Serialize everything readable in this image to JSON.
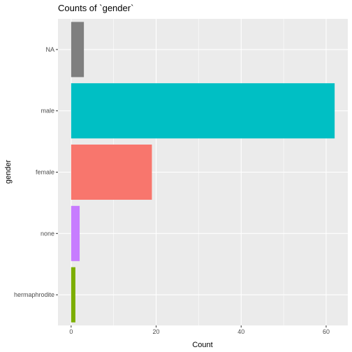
{
  "chart_data": {
    "type": "bar",
    "orientation": "horizontal",
    "title": "Counts of `gender`",
    "xlabel": "Count",
    "ylabel": "gender",
    "categories": [
      "NA",
      "male",
      "female",
      "none",
      "hermaphrodite"
    ],
    "values": [
      3,
      62,
      19,
      2,
      1
    ],
    "bar_colors": [
      "#7F7F7F",
      "#00BFC4",
      "#F8766D",
      "#C77CFF",
      "#7CAE00"
    ],
    "xlim": [
      -3.1,
      65.1
    ],
    "xticks": [
      0,
      20,
      40,
      60
    ],
    "xtick_labels": [
      "0",
      "20",
      "40",
      "60"
    ],
    "grid": true,
    "panel_background": "#EBEBEB",
    "gridline_color": "#FFFFFF",
    "legend": "none"
  }
}
